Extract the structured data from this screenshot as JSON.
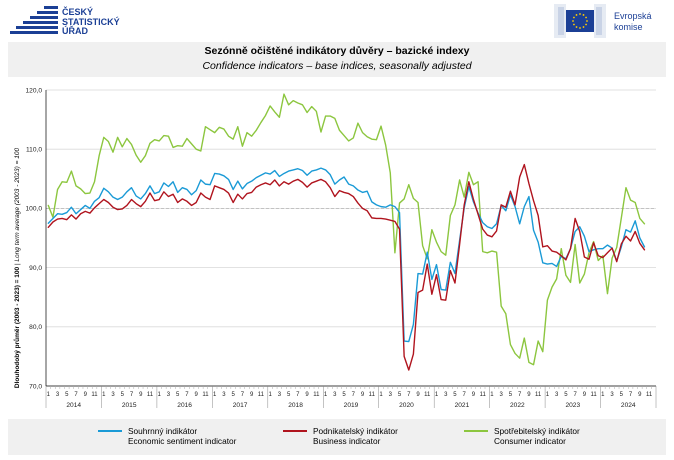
{
  "header": {
    "logo_left_lines": [
      "ČESKÝ",
      "STATISTICKÝ",
      "ÚŘAD"
    ],
    "logo_right_lines": [
      "Evropská",
      "komise"
    ],
    "brand_color": "#1b3f95",
    "logo_left_icon": "csu-logo-icon",
    "logo_right_icon": "eu-flag-icon"
  },
  "title_cz": "Sezónně očištěné indikátory důvěry – bazické indexy",
  "title_en": "Confidence indicators – base indices, seasonally adjusted",
  "legend": [
    {
      "name": "Souhrnný indikátor",
      "name_en": "Economic sentiment indicator",
      "color": "#1a9ad6"
    },
    {
      "name": "Podnikatelský indikátor",
      "name_en": "Business indicator",
      "color": "#b0141e"
    },
    {
      "name": "Spotřebitelský indikátor",
      "name_en": "Consumer indicator",
      "color": "#8cc63f"
    }
  ],
  "chart_data": {
    "type": "line",
    "ylabel": "Dlouhodobý průměr (2003 - 2023) = 100",
    "ylabel_en": "Long term average (2003 - 2023) = 100",
    "ylim": [
      70,
      120
    ],
    "yticks": [
      "70,0",
      "80,0",
      "90,0",
      "100,0",
      "110,0",
      "120,0"
    ],
    "yticks_values": [
      70,
      80,
      90,
      100,
      110,
      120
    ],
    "grid": "horizontal",
    "reference_line": 100,
    "x_start": "2014-01",
    "month_labels": [
      "1",
      "3",
      "5",
      "7",
      "9",
      "11"
    ],
    "years": [
      "2014",
      "2015",
      "2016",
      "2017",
      "2018",
      "2019",
      "2020",
      "2021",
      "2022",
      "2023",
      "2024"
    ],
    "legend_position": "bottom",
    "series": [
      {
        "name": "Souhrnný indikátor",
        "color": "#1a9ad6",
        "values": [
          97.5,
          98.3,
          99.1,
          99.0,
          99.3,
          100.2,
          99.1,
          99.8,
          100.5,
          100.0,
          101.2,
          101.8,
          103.4,
          102.8,
          101.9,
          101.5,
          101.9,
          102.8,
          103.5,
          102.1,
          101.6,
          102.5,
          103.8,
          102.5,
          102.8,
          104.3,
          103.7,
          104.5,
          102.7,
          103.5,
          103.2,
          102.3,
          103.0,
          104.8,
          104.1,
          104.0,
          105.9,
          105.8,
          105.5,
          104.9,
          103.2,
          104.6,
          103.3,
          104.2,
          104.6,
          105.2,
          105.6,
          106.0,
          105.8,
          106.4,
          105.4,
          105.9,
          106.3,
          106.5,
          106.7,
          106.4,
          105.6,
          106.3,
          106.5,
          106.8,
          106.5,
          105.7,
          104.1,
          104.8,
          105.3,
          104.1,
          103.8,
          103.1,
          102.7,
          102.9,
          101.1,
          100.6,
          100.3,
          100.2,
          100.6,
          100.3,
          99.3,
          77.6,
          77.5,
          80.4,
          89.0,
          88.9,
          92.6,
          88.0,
          90.5,
          86.3,
          86.2,
          90.9,
          89.0,
          94.6,
          100.1,
          103.7,
          101.1,
          99.2,
          97.6,
          96.9,
          96.6,
          97.4,
          100.5,
          99.6,
          102.3,
          100.3,
          97.4,
          100.3,
          102.0,
          96.3,
          94.3,
          90.8,
          90.6,
          90.7,
          90.2,
          91.9,
          91.5,
          93.2,
          96.1,
          96.9,
          95.3,
          92.7,
          93.0,
          93.2,
          93.2,
          93.8,
          93.3,
          91.1,
          93.5,
          96.4,
          96.0,
          97.9,
          95.0,
          93.5
        ]
      },
      {
        "name": "Podnikatelský indikátor",
        "color": "#b0141e",
        "values": [
          96.8,
          97.7,
          98.2,
          98.3,
          98.1,
          98.9,
          98.2,
          99.1,
          99.5,
          99.2,
          100.1,
          100.8,
          101.5,
          101.0,
          100.2,
          99.8,
          99.9,
          100.5,
          101.5,
          100.8,
          100.3,
          101.2,
          102.6,
          101.3,
          101.5,
          102.8,
          102.0,
          102.4,
          101.0,
          101.6,
          101.2,
          100.5,
          101.0,
          102.6,
          101.9,
          101.5,
          103.8,
          103.5,
          103.2,
          102.6,
          101.0,
          102.4,
          101.6,
          102.5,
          102.7,
          103.6,
          104.0,
          104.3,
          104.0,
          104.8,
          103.8,
          104.5,
          104.1,
          104.6,
          104.9,
          104.4,
          103.6,
          104.3,
          104.6,
          104.9,
          104.5,
          103.5,
          102.0,
          103.0,
          102.7,
          102.5,
          102.0,
          100.9,
          100.0,
          99.6,
          98.4,
          98.3,
          98.3,
          98.2,
          98.0,
          97.8,
          96.5,
          75.0,
          72.7,
          75.4,
          85.8,
          86.2,
          90.6,
          85.5,
          88.8,
          84.6,
          84.5,
          89.5,
          87.4,
          93.9,
          100.6,
          104.5,
          101.5,
          99.0,
          96.5,
          95.5,
          95.2,
          96.2,
          100.6,
          100.2,
          102.9,
          100.6,
          105.3,
          107.4,
          104.2,
          101.3,
          98.8,
          93.5,
          93.7,
          92.8,
          92.6,
          92.0,
          91.3,
          93.2,
          98.3,
          96.1,
          91.8,
          91.4,
          94.2,
          92.0,
          91.7,
          92.5,
          93.3,
          91.0,
          94.0,
          95.3,
          94.5,
          96.1,
          94.1,
          93.0
        ]
      },
      {
        "name": "Spotřebitelský indikátor",
        "color": "#8cc63f",
        "values": [
          100.5,
          98.5,
          103.2,
          104.5,
          104.4,
          106.3,
          103.8,
          103.3,
          102.5,
          102.6,
          104.5,
          108.9,
          112.0,
          111.3,
          109.5,
          112.0,
          110.4,
          111.8,
          110.8,
          109.0,
          107.8,
          108.9,
          111.0,
          111.6,
          111.4,
          112.3,
          112.2,
          110.3,
          110.6,
          110.5,
          111.8,
          110.9,
          110.0,
          109.7,
          113.8,
          113.3,
          112.8,
          113.7,
          113.4,
          112.2,
          111.7,
          113.8,
          110.5,
          112.8,
          112.2,
          113.2,
          114.5,
          115.7,
          117.3,
          116.3,
          115.4,
          119.3,
          117.5,
          118.2,
          117.8,
          117.5,
          116.2,
          117.2,
          116.4,
          112.9,
          115.6,
          115.6,
          115.2,
          113.2,
          112.3,
          111.4,
          111.9,
          114.4,
          112.8,
          112.1,
          111.7,
          111.6,
          113.9,
          110.7,
          106.0,
          92.5,
          100.9,
          101.6,
          104.0,
          101.7,
          101.0,
          93.7,
          91.5,
          96.4,
          94.3,
          92.7,
          92.1,
          98.8,
          100.6,
          104.8,
          101.9,
          106.1,
          104.0,
          104.5,
          92.7,
          92.5,
          92.8,
          92.6,
          83.5,
          82.2,
          77.0,
          75.5,
          74.7,
          78.1,
          74.0,
          73.6,
          77.6,
          75.8,
          84.5,
          86.7,
          88.1,
          93.2,
          88.7,
          87.5,
          93.9,
          87.4,
          88.9,
          92.5,
          94.4,
          91.2,
          92.0,
          85.6,
          91.6,
          93.4,
          98.4,
          103.5,
          101.4,
          101.0,
          98.3,
          97.4
        ]
      }
    ]
  }
}
